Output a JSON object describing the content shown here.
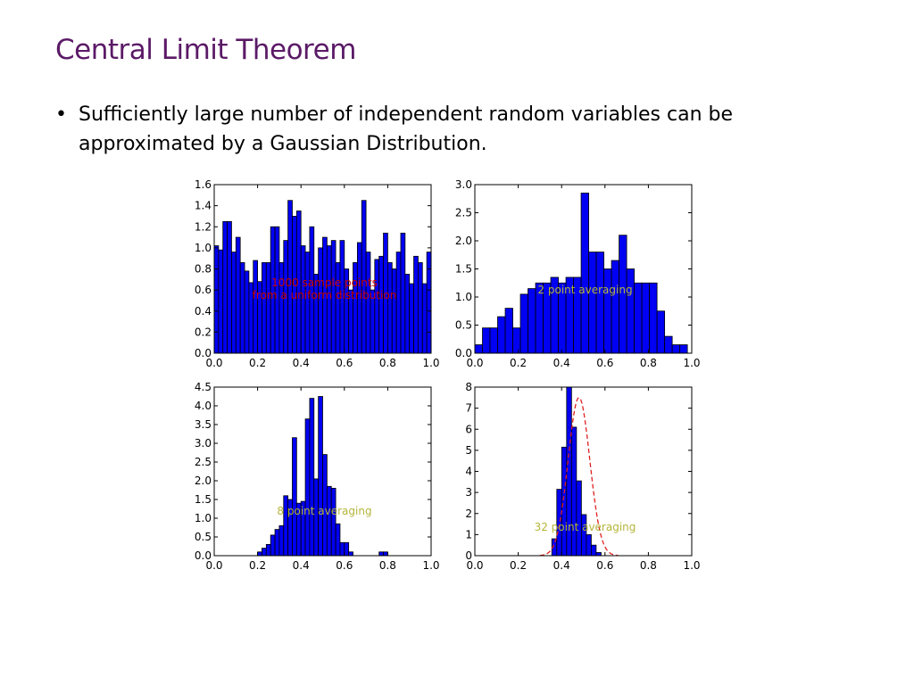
{
  "slide": {
    "title": "Central Limit Theorem",
    "bullet_symbol": "•",
    "bullet_text": "Sufficiently large number of independent random variables can be approximated by a Gaussian Distribution."
  },
  "colors": {
    "title": "#5b1a66",
    "bar_fill": "#0000f2",
    "bar_edge": "#000000",
    "annotation_red": "#cc0000",
    "annotation_olive": "#b5b53c",
    "gaussian_line": "#e02020"
  },
  "chart_data": [
    {
      "type": "bar",
      "annotation": [
        "1000 sample points",
        "from a uniform distribution"
      ],
      "annotation_color": "red",
      "xlim": [
        0.0,
        1.0
      ],
      "ylim": [
        0.0,
        1.6
      ],
      "xticks": [
        "0.0",
        "0.2",
        "0.4",
        "0.6",
        "0.8",
        "1.0"
      ],
      "yticks": [
        "0.0",
        "0.2",
        "0.4",
        "0.6",
        "0.8",
        "1.0",
        "1.2",
        "1.4",
        "1.6"
      ],
      "bin_width": 0.02,
      "bin_start": 0.0,
      "values": [
        1.02,
        0.98,
        1.25,
        1.25,
        0.96,
        1.1,
        0.86,
        0.78,
        0.67,
        0.88,
        0.68,
        0.86,
        0.86,
        1.2,
        1.2,
        0.86,
        1.07,
        1.45,
        1.3,
        1.35,
        1.02,
        0.96,
        1.2,
        0.75,
        1.0,
        1.1,
        1.02,
        1.07,
        0.86,
        1.07,
        0.8,
        0.6,
        0.86,
        1.05,
        1.45,
        0.96,
        0.6,
        0.89,
        0.92,
        1.14,
        0.86,
        0.8,
        0.96,
        1.14,
        0.75,
        0.66,
        0.92,
        0.86,
        0.66,
        0.96
      ]
    },
    {
      "type": "bar",
      "annotation": [
        "2 point averaging"
      ],
      "annotation_color": "olive",
      "xlim": [
        0.0,
        1.0
      ],
      "ylim": [
        0.0,
        3.0
      ],
      "xticks": [
        "0.0",
        "0.2",
        "0.4",
        "0.6",
        "0.8",
        "1.0"
      ],
      "yticks": [
        "0.0",
        "0.5",
        "1.0",
        "1.5",
        "2.0",
        "2.5",
        "3.0"
      ],
      "bin_width": 0.035,
      "bin_start": 0.0,
      "values": [
        0.15,
        0.45,
        0.45,
        0.65,
        0.8,
        0.45,
        1.05,
        1.15,
        1.25,
        1.25,
        1.35,
        1.25,
        1.35,
        1.35,
        2.85,
        1.8,
        1.8,
        1.5,
        1.65,
        2.1,
        1.5,
        1.25,
        1.25,
        1.25,
        0.75,
        0.3,
        0.15,
        0.15
      ]
    },
    {
      "type": "bar",
      "annotation": [
        "8 point averaging"
      ],
      "annotation_color": "olive",
      "xlim": [
        0.0,
        1.0
      ],
      "ylim": [
        0.0,
        4.5
      ],
      "xticks": [
        "0.0",
        "0.2",
        "0.4",
        "0.6",
        "0.8",
        "1.0"
      ],
      "yticks": [
        "0.0",
        "0.5",
        "1.0",
        "1.5",
        "2.0",
        "2.5",
        "3.0",
        "3.5",
        "4.0",
        "4.5"
      ],
      "bin_width": 0.02,
      "bin_start": 0.2,
      "values": [
        0.1,
        0.2,
        0.3,
        0.55,
        0.7,
        0.8,
        1.6,
        1.5,
        3.15,
        1.4,
        1.45,
        3.65,
        4.2,
        2.05,
        4.25,
        2.7,
        1.85,
        1.8,
        0.85,
        0.35,
        0.35,
        0.1,
        0,
        0,
        0,
        0,
        0,
        0,
        0.1,
        0.1
      ]
    },
    {
      "type": "bar",
      "annotation": [
        "32 point averaging"
      ],
      "annotation_color": "olive",
      "xlim": [
        0.0,
        1.0
      ],
      "ylim": [
        0.0,
        8.0
      ],
      "xticks": [
        "0.0",
        "0.2",
        "0.4",
        "0.6",
        "0.8",
        "1.0"
      ],
      "yticks": [
        "0",
        "1",
        "2",
        "3",
        "4",
        "5",
        "6",
        "7",
        "8"
      ],
      "bin_width": 0.0227,
      "bin_start": 0.355,
      "values": [
        0.8,
        3.15,
        5.15,
        8.0,
        6.1,
        3.55,
        1.95,
        1.0,
        0.5,
        0.15
      ],
      "overlay": {
        "type": "line",
        "style": "dashed",
        "shape": "gaussian",
        "mean": 0.48,
        "sd": 0.05,
        "peak": 7.5
      }
    }
  ]
}
